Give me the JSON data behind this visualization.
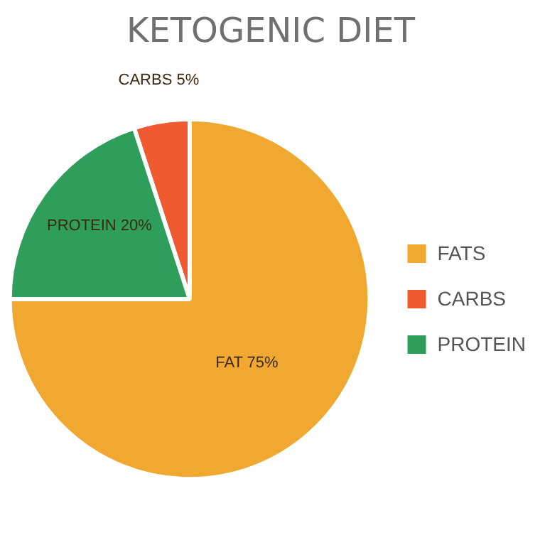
{
  "chart_data": {
    "type": "pie",
    "title": "KETOGENIC DIET",
    "categories": [
      "FATS",
      "CARBS",
      "PROTEIN"
    ],
    "values": [
      75,
      5,
      20
    ],
    "colors": [
      "#f0a830",
      "#f05a30",
      "#2e9e5a"
    ],
    "value_labels": [
      "FAT 75%",
      "CARBS 5%",
      "PROTEIN 20%"
    ],
    "legend": "right"
  }
}
